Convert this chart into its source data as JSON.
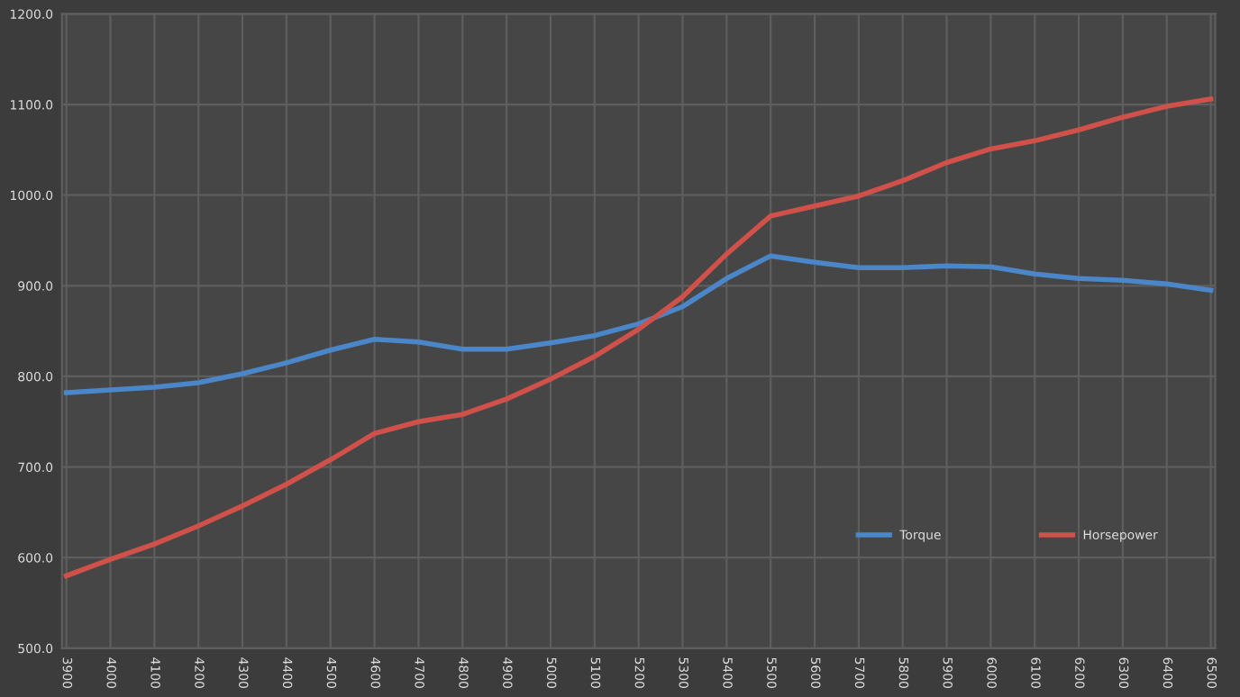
{
  "chart_data": {
    "type": "line",
    "categories": [
      "3900",
      "4000",
      "4100",
      "4200",
      "4300",
      "4400",
      "4500",
      "4600",
      "4700",
      "4800",
      "4900",
      "5000",
      "5100",
      "5200",
      "5300",
      "5400",
      "5500",
      "5600",
      "5700",
      "5800",
      "5900",
      "6000",
      "6100",
      "6200",
      "6300",
      "6400",
      "6500"
    ],
    "series": [
      {
        "name": "Torque",
        "color": "#4a86c8",
        "values": [
          782,
          785,
          788,
          793,
          803,
          815,
          829,
          841,
          838,
          830,
          830,
          837,
          845,
          858,
          877,
          908,
          933,
          926,
          920,
          920,
          922,
          921,
          913,
          908,
          906,
          902,
          895
        ]
      },
      {
        "name": "Horsepower",
        "color": "#d0504a",
        "values": [
          580,
          598,
          615,
          635,
          657,
          681,
          708,
          737,
          750,
          758,
          775,
          797,
          822,
          852,
          888,
          935,
          977,
          988,
          999,
          1016,
          1036,
          1051,
          1060,
          1072,
          1086,
          1098,
          1106
        ]
      }
    ],
    "ylim": [
      500,
      1200
    ],
    "yticks": [
      {
        "value": 500,
        "label": "500.0"
      },
      {
        "value": 600,
        "label": "600.0"
      },
      {
        "value": 700,
        "label": "700.0"
      },
      {
        "value": 800,
        "label": "800.0"
      },
      {
        "value": 900,
        "label": "900.0"
      },
      {
        "value": 1000,
        "label": "1000.0"
      },
      {
        "value": 1100,
        "label": "1100.0"
      },
      {
        "value": 1200,
        "label": "1200.0"
      }
    ],
    "grid": true,
    "legend": "bottom right",
    "marker": "none",
    "line_style": "solid"
  }
}
